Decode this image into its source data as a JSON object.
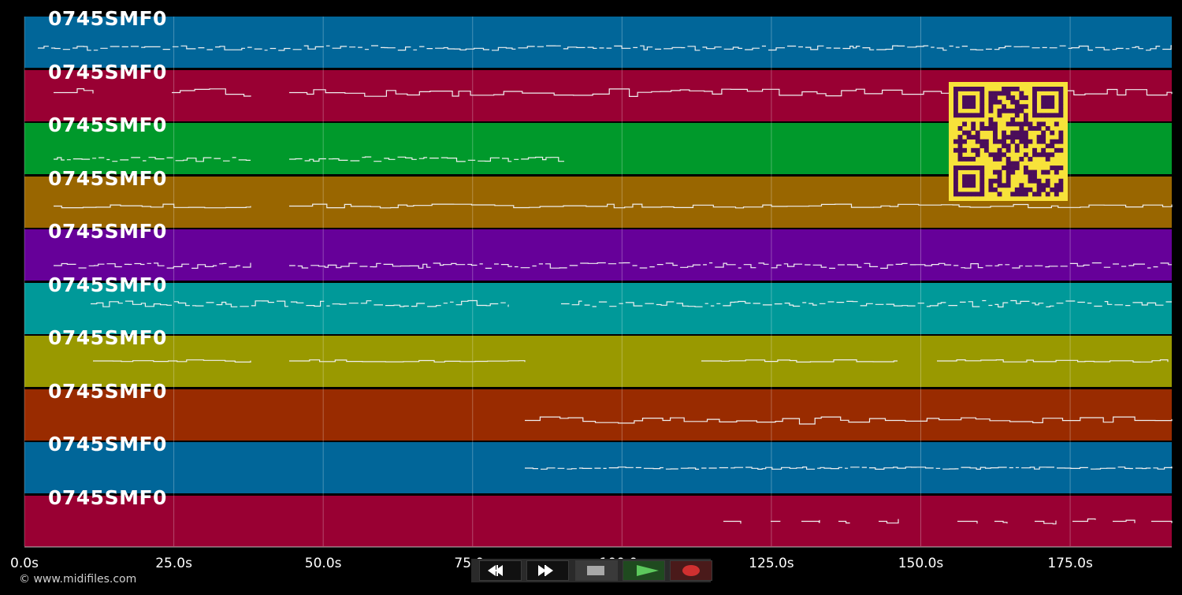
{
  "app": {
    "copyright": "© www.midifiles.com"
  },
  "tracks": [
    {
      "label": "0745SMF0",
      "color": "#016699"
    },
    {
      "label": "0745SMF0",
      "color": "#990033"
    },
    {
      "label": "0745SMF0",
      "color": "#00992b"
    },
    {
      "label": "0745SMF0",
      "color": "#996600"
    },
    {
      "label": "0745SMF0",
      "color": "#660099"
    },
    {
      "label": "0745SMF0",
      "color": "#009999"
    },
    {
      "label": "0745SMF0",
      "color": "#999900"
    },
    {
      "label": "0745SMF0",
      "color": "#992b00"
    },
    {
      "label": "0745SMF0",
      "color": "#016699"
    },
    {
      "label": "0745SMF0",
      "color": "#990033"
    }
  ],
  "timeline": {
    "ticks": [
      "0.0s",
      "25.0s",
      "50.0s",
      "75.0s",
      "100.0s",
      "125.0s",
      "150.0s",
      "175.0s"
    ],
    "tick_values": [
      0,
      25,
      50,
      75,
      100,
      125,
      150,
      175
    ],
    "duration": 192
  },
  "transport": {
    "rewind_icon": "rewind-icon",
    "forward_icon": "fast-forward-icon",
    "stop_icon": "stop-icon",
    "play_icon": "play-icon",
    "record_icon": "record-icon",
    "play_color": "#5cc85c",
    "record_color": "#d03030"
  },
  "qr": {
    "fg": "#4b0d5a",
    "bg": "#f7e23a"
  }
}
